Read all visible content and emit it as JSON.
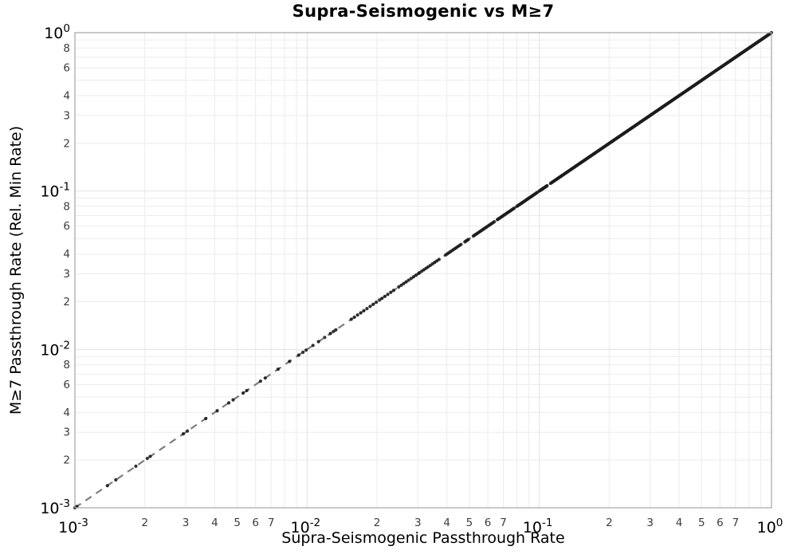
{
  "chart_data": {
    "type": "scatter",
    "title": "Supra-Seismogenic vs M≥7",
    "xlabel": "Supra-Seismogenic Passthrough Rate",
    "ylabel": "M≥7 Passthrough Rate (Rel. Min Rate)",
    "xscale": "log",
    "yscale": "log",
    "xlim": [
      0.001,
      1
    ],
    "ylim": [
      0.001,
      1
    ],
    "grid": "major and minor, light gray, on",
    "legend": "none",
    "x_axis": {
      "major_tick_exponents": [
        -3,
        -2,
        -1,
        0
      ],
      "labeled_minor_mantissas": [
        2,
        3,
        4,
        5,
        6,
        7
      ],
      "gridline_mantissas": [
        2,
        3,
        4,
        5,
        6,
        7,
        8,
        9
      ]
    },
    "y_axis": {
      "major_tick_exponents": [
        0,
        -1,
        -2,
        -3
      ],
      "labeled_minor_mantissas": [
        8,
        6,
        4,
        3,
        2
      ],
      "gridline_mantissas": [
        2,
        3,
        4,
        5,
        6,
        7,
        8,
        9
      ]
    },
    "reference_line": {
      "name": "one-to-one line",
      "relation": "y = x",
      "from": [
        0.001,
        0.001
      ],
      "to": [
        1.0,
        1.0
      ],
      "style": "dashed",
      "color": "#7d7d7d"
    },
    "series": [
      {
        "name": "fault-section passthrough rates",
        "marker": "circle",
        "marker_color": "#1c1c1c",
        "marker_opacity": 0.9,
        "marker_radius_px": 2.1,
        "relation": "points lie on y = x",
        "points_x": [
          0.001,
          0.00102,
          0.00138,
          0.0015,
          0.00183,
          0.00205,
          0.00211,
          0.00293,
          0.00305,
          0.00366,
          0.0041,
          0.0046,
          0.0048,
          0.0053,
          0.0055,
          0.0063,
          0.0066,
          0.0075,
          0.0084,
          0.0092,
          0.0096,
          0.0099,
          0.0106,
          0.0112,
          0.0119,
          0.0126,
          0.013,
          0.0133
        ],
        "dense_bands_x": [
          {
            "from": 0.0155,
            "to": 0.0205,
            "count": 10
          },
          {
            "from": 0.021,
            "to": 0.0236,
            "count": 5
          },
          {
            "from": 0.0248,
            "to": 0.0302,
            "count": 9
          },
          {
            "from": 0.0305,
            "to": 0.037,
            "count": 10
          },
          {
            "from": 0.0395,
            "to": 0.046,
            "count": 11
          },
          {
            "from": 0.0478,
            "to": 0.0495,
            "count": 4
          },
          {
            "from": 0.052,
            "to": 0.064,
            "count": 18
          },
          {
            "from": 0.066,
            "to": 0.078,
            "count": 17
          },
          {
            "from": 0.08,
            "to": 0.098,
            "count": 24
          },
          {
            "from": 0.1,
            "to": 0.108,
            "count": 12
          },
          {
            "from": 0.112,
            "to": 1.0,
            "count": 280
          }
        ]
      }
    ],
    "style": {
      "background": "#ffffff",
      "grid_minor_color": "#ebebeb",
      "grid_major_color": "#e2e2e2",
      "spine_color": "#ababab",
      "major_tick_label_color": "#000000",
      "minor_tick_label_color": "#3c3c3c"
    }
  }
}
